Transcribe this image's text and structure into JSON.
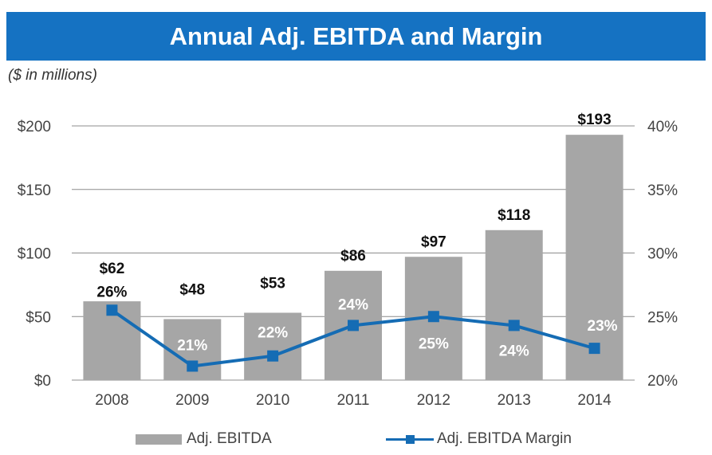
{
  "title": "Annual Adj. EBITDA and Margin",
  "subtitle": "($ in millions)",
  "colors": {
    "title_bg": "#1572c2",
    "bar": "#a6a6a6",
    "line": "#156cb4",
    "gridline": "#8c8c8c",
    "axis_text": "#444444",
    "label_dark": "#111111",
    "label_light": "#ffffff"
  },
  "legend": {
    "bar_label": "Adj. EBITDA",
    "line_label": "Adj. EBITDA Margin"
  },
  "chart_data": {
    "type": "bar",
    "categories": [
      "2008",
      "2009",
      "2010",
      "2011",
      "2012",
      "2013",
      "2014"
    ],
    "series": [
      {
        "name": "Adj. EBITDA",
        "type": "bar",
        "axis": "left",
        "values": [
          62,
          48,
          53,
          86,
          97,
          118,
          193
        ],
        "labels": [
          "$62",
          "$48",
          "$53",
          "$86",
          "$97",
          "$118",
          "$193"
        ]
      },
      {
        "name": "Adj. EBITDA Margin",
        "type": "line",
        "axis": "right",
        "values": [
          25.5,
          21.1,
          21.9,
          24.3,
          25.0,
          24.3,
          22.5
        ],
        "labels": [
          "26%",
          "21%",
          "22%",
          "24%",
          "25%",
          "24%",
          "23%"
        ]
      }
    ],
    "y_left": {
      "ylim": [
        0,
        200
      ],
      "ticks": [
        0,
        50,
        100,
        150,
        200
      ],
      "tick_labels": [
        "$0",
        "$50",
        "$100",
        "$150",
        "$200"
      ]
    },
    "y_right": {
      "ylim": [
        20,
        40
      ],
      "ticks": [
        20,
        25,
        30,
        35,
        40
      ],
      "tick_labels": [
        "20%",
        "25%",
        "30%",
        "35%",
        "40%"
      ]
    },
    "grid": true,
    "legend_position": "bottom"
  }
}
